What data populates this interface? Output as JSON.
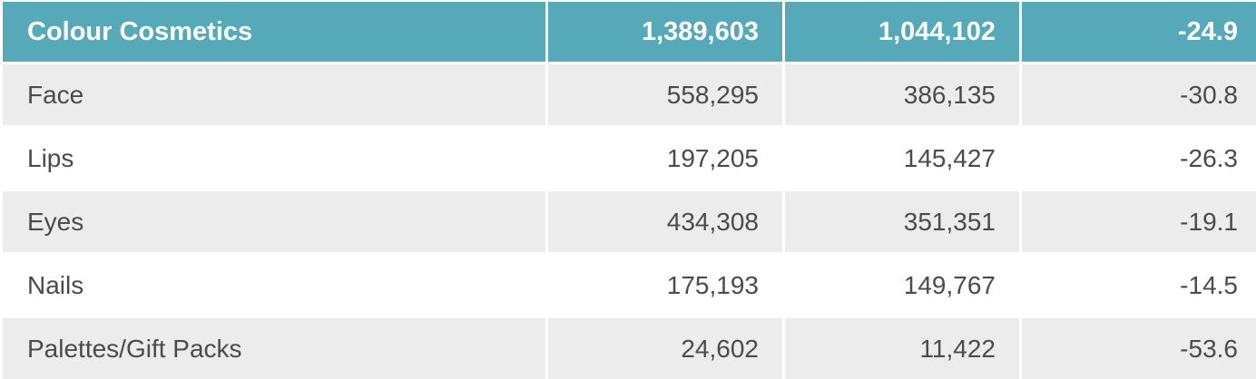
{
  "header": {
    "label": "Colour Cosmetics",
    "col1": "1,389,603",
    "col2": "1,044,102",
    "col3": "-24.9"
  },
  "rows": [
    {
      "label": "Face",
      "col1": "558,295",
      "col2": "386,135",
      "col3": "-30.8"
    },
    {
      "label": "Lips",
      "col1": "197,205",
      "col2": "145,427",
      "col3": "-26.3"
    },
    {
      "label": "Eyes",
      "col1": "434,308",
      "col2": "351,351",
      "col3": "-19.1"
    },
    {
      "label": "Nails",
      "col1": "175,193",
      "col2": "149,767",
      "col3": "-14.5"
    },
    {
      "label": "Palettes/Gift Packs",
      "col1": "24,602",
      "col2": "11,422",
      "col3": "-53.6"
    }
  ],
  "colors": {
    "header_bg": "#56a9b9",
    "row_shade": "#ececec",
    "text": "#4b4b4b"
  }
}
